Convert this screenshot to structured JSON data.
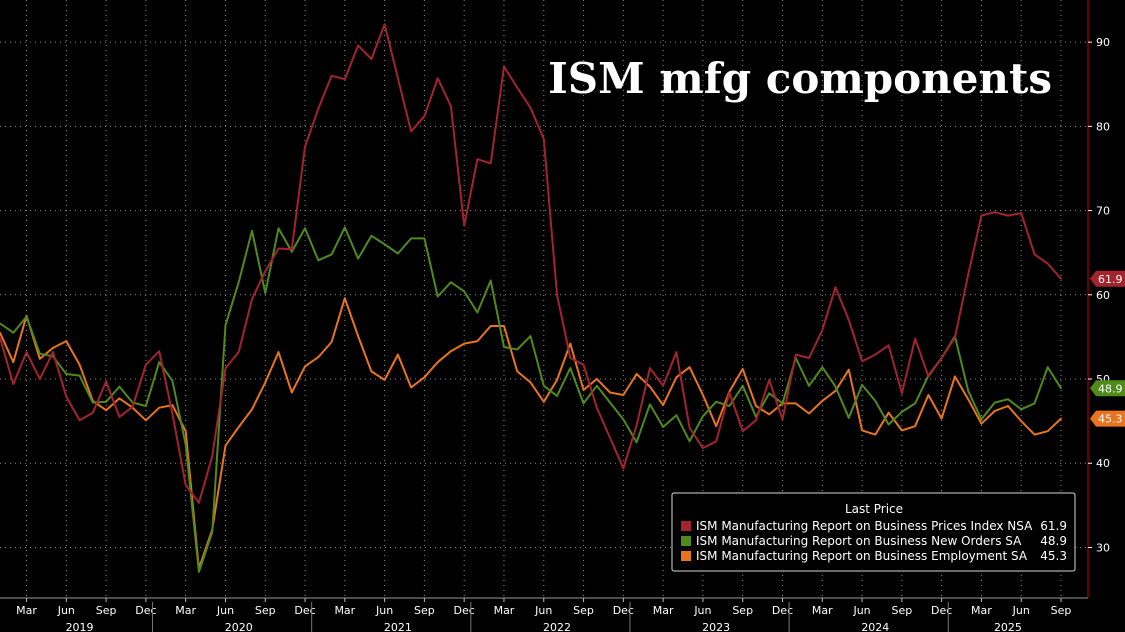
{
  "chart_data": {
    "type": "line",
    "title": "ISM mfg components",
    "xlabel": "",
    "ylabel": "",
    "ylim": [
      24,
      95
    ],
    "y_ticks": [
      30,
      40,
      50,
      60,
      70,
      80,
      90
    ],
    "y_axis_side": "right",
    "grid": true,
    "legend_placement": "bottom-right",
    "legend_header": "Last Price",
    "x_tick_labels": [
      "Mar",
      "Jun",
      "Sep",
      "Dec",
      "Mar",
      "Jun",
      "Sep",
      "Dec",
      "Mar",
      "Jun",
      "Sep",
      "Dec",
      "Mar",
      "Jun",
      "Sep",
      "Dec",
      "Mar",
      "Jun",
      "Sep",
      "Dec",
      "Mar",
      "Jun",
      "Sep",
      "Dec",
      "Mar",
      "Jun",
      "Sep"
    ],
    "year_labels": [
      "2019",
      "2020",
      "2021",
      "2022",
      "2023",
      "2024",
      "2025"
    ],
    "x": [
      "2019-01",
      "2019-02",
      "2019-03",
      "2019-04",
      "2019-05",
      "2019-06",
      "2019-07",
      "2019-08",
      "2019-09",
      "2019-10",
      "2019-11",
      "2019-12",
      "2020-01",
      "2020-02",
      "2020-03",
      "2020-04",
      "2020-05",
      "2020-06",
      "2020-07",
      "2020-08",
      "2020-09",
      "2020-10",
      "2020-11",
      "2020-12",
      "2021-01",
      "2021-02",
      "2021-03",
      "2021-04",
      "2021-05",
      "2021-06",
      "2021-07",
      "2021-08",
      "2021-09",
      "2021-10",
      "2021-11",
      "2021-12",
      "2022-01",
      "2022-02",
      "2022-03",
      "2022-04",
      "2022-05",
      "2022-06",
      "2022-07",
      "2022-08",
      "2022-09",
      "2022-10",
      "2022-11",
      "2022-12",
      "2023-01",
      "2023-02",
      "2023-03",
      "2023-04",
      "2023-05",
      "2023-06",
      "2023-07",
      "2023-08",
      "2023-09",
      "2023-10",
      "2023-11",
      "2023-12",
      "2024-01",
      "2024-02",
      "2024-03",
      "2024-04",
      "2024-05",
      "2024-06",
      "2024-07",
      "2024-08",
      "2024-09",
      "2024-10",
      "2024-11",
      "2024-12",
      "2025-01",
      "2025-02",
      "2025-03",
      "2025-04",
      "2025-05",
      "2025-06",
      "2025-07",
      "2025-08",
      "2025-09"
    ],
    "series": [
      {
        "name": "ISM Manufacturing Report on Business Prices Index NSA",
        "color": "#a3232f",
        "last_value": "61.9",
        "values": [
          54.9,
          49.4,
          53.2,
          50.0,
          53.2,
          47.9,
          45.1,
          46.0,
          49.7,
          45.5,
          46.7,
          51.7,
          53.3,
          45.9,
          37.4,
          35.3,
          40.8,
          51.3,
          53.2,
          59.5,
          62.8,
          65.5,
          65.4,
          77.6,
          82.1,
          86.0,
          85.6,
          89.6,
          88.0,
          92.1,
          85.7,
          79.4,
          81.2,
          85.7,
          82.4,
          68.2,
          76.1,
          75.6,
          87.1,
          84.6,
          82.2,
          78.5,
          60.0,
          52.5,
          51.7,
          46.6,
          43.0,
          39.4,
          44.5,
          51.3,
          49.2,
          53.2,
          44.2,
          41.8,
          42.6,
          48.4,
          43.8,
          45.1,
          49.9,
          45.2,
          52.9,
          52.5,
          55.8,
          60.9,
          57.0,
          52.1,
          52.9,
          54.0,
          48.3,
          54.8,
          50.3,
          52.5,
          54.9,
          62.4,
          69.4,
          69.8,
          69.4,
          69.7,
          64.8,
          63.7,
          61.9
        ]
      },
      {
        "name": "ISM Manufacturing Report on Business New Orders SA",
        "color": "#4f8a1b",
        "last_value": "48.9",
        "values": [
          56.6,
          55.5,
          57.4,
          53.0,
          52.7,
          50.6,
          50.4,
          47.2,
          47.3,
          49.1,
          47.2,
          46.8,
          52.0,
          49.8,
          42.2,
          27.1,
          31.8,
          56.4,
          61.5,
          67.6,
          60.2,
          67.9,
          65.1,
          67.9,
          64.1,
          64.8,
          68.0,
          64.3,
          67.0,
          66.0,
          64.9,
          66.7,
          66.7,
          59.8,
          61.5,
          60.4,
          57.9,
          61.7,
          53.8,
          53.5,
          55.1,
          49.2,
          48.0,
          51.3,
          47.1,
          49.2,
          47.2,
          45.2,
          42.5,
          47.0,
          44.3,
          45.7,
          42.6,
          45.6,
          47.3,
          46.8,
          49.2,
          45.5,
          48.3,
          47.1,
          52.5,
          49.2,
          51.4,
          49.1,
          45.4,
          49.3,
          47.4,
          44.6,
          46.1,
          47.1,
          50.4,
          52.5,
          55.1,
          48.6,
          45.2,
          47.2,
          47.6,
          46.4,
          47.1,
          51.4,
          48.9
        ]
      },
      {
        "name": "ISM Manufacturing Report on Business Employment SA",
        "color": "#e8741e",
        "last_value": "45.3",
        "values": [
          55.5,
          52.0,
          57.5,
          52.4,
          53.7,
          54.5,
          51.7,
          47.4,
          46.3,
          47.7,
          46.6,
          45.1,
          46.6,
          46.9,
          43.8,
          27.5,
          32.1,
          42.1,
          44.3,
          46.4,
          49.6,
          53.2,
          48.4,
          51.5,
          52.6,
          54.4,
          59.6,
          55.1,
          50.9,
          49.9,
          52.9,
          49.0,
          50.2,
          52.0,
          53.3,
          54.2,
          54.5,
          56.3,
          56.3,
          50.9,
          49.6,
          47.3,
          49.9,
          54.2,
          48.7,
          50.0,
          48.4,
          48.1,
          50.6,
          49.1,
          46.9,
          50.2,
          51.4,
          48.1,
          44.4,
          48.5,
          51.2,
          46.8,
          45.8,
          47.1,
          47.1,
          45.9,
          47.4,
          48.6,
          51.1,
          43.9,
          43.4,
          46.0,
          43.9,
          44.4,
          48.1,
          45.3,
          50.3,
          47.6,
          44.7,
          46.2,
          46.8,
          45.0,
          43.4,
          43.8,
          45.3
        ]
      }
    ]
  }
}
